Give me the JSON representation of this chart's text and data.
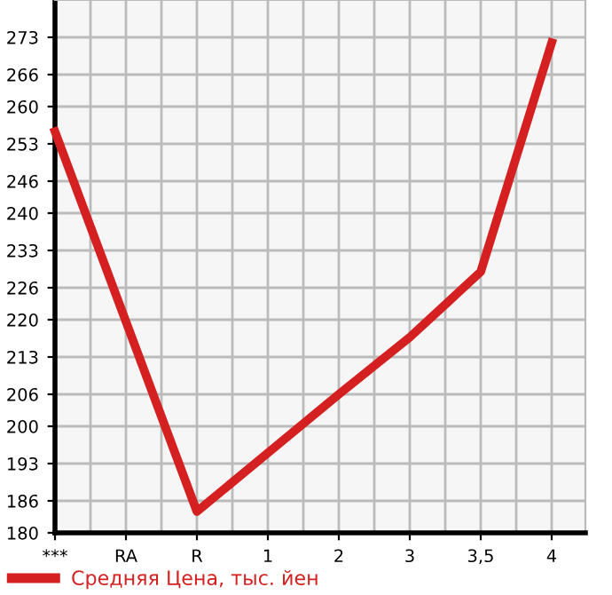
{
  "chart_data": {
    "type": "line",
    "categories": [
      "***",
      "RA",
      "R",
      "1",
      "2",
      "3",
      "3,5",
      "4"
    ],
    "series": [
      {
        "name": "Средняя Цена, тыс. йен",
        "color": "#d42020",
        "values": [
          255.3,
          null,
          184,
          195,
          206,
          216.7,
          229,
          272
        ]
      }
    ],
    "ylim": [
      180,
      280
    ],
    "yticks": [
      180,
      186,
      193,
      200,
      206,
      213,
      220,
      226,
      233,
      240,
      246,
      253,
      260,
      266,
      273
    ],
    "grid": true,
    "legend": "bottom left",
    "marker": "none",
    "line_style": "solid"
  }
}
